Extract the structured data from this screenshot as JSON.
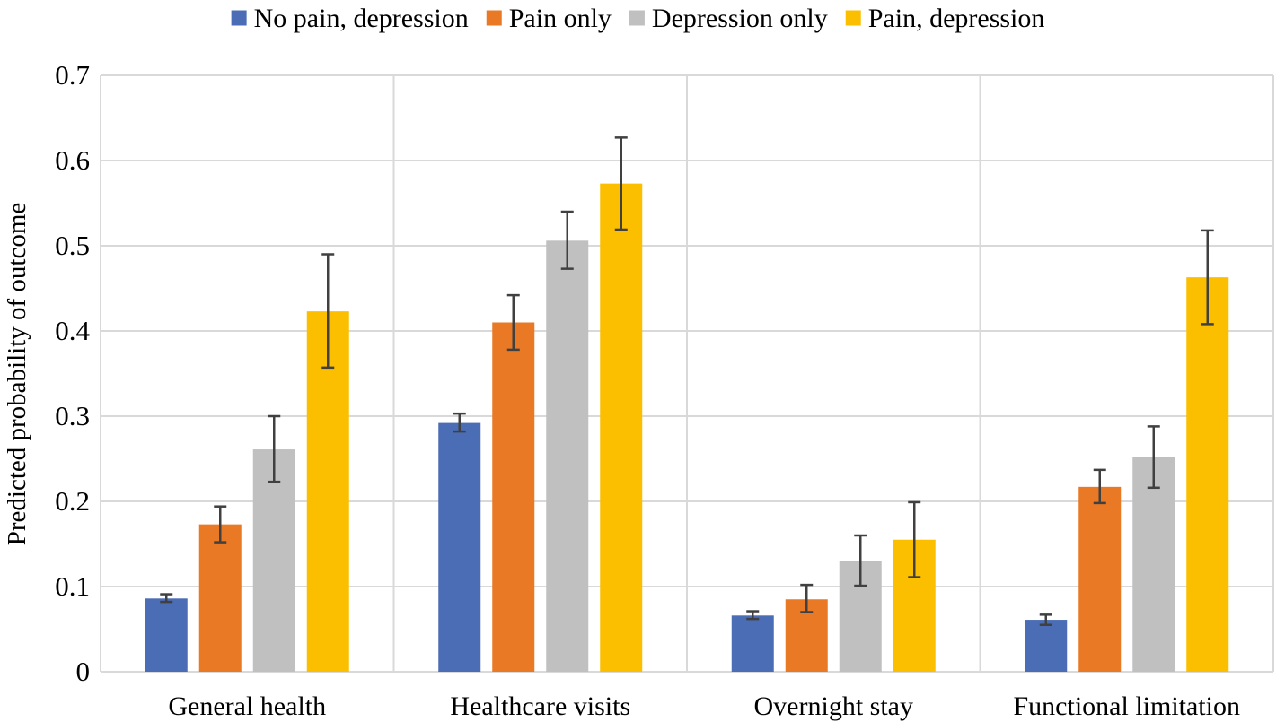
{
  "chart_data": {
    "type": "bar",
    "title": "",
    "xlabel": "",
    "ylabel": "Predicted probability of outcome",
    "ylim": [
      0,
      0.7
    ],
    "yticks": [
      "0",
      "0.1",
      "0.2",
      "0.3",
      "0.4",
      "0.5",
      "0.6",
      "0.7"
    ],
    "grid": true,
    "legend_position": "top",
    "categories": [
      "General health",
      "Healthcare visits",
      "Overnight stay",
      "Functional limitation"
    ],
    "series": [
      {
        "name": "No pain, depression",
        "color": "#4a6db5",
        "values": [
          0.086,
          0.292,
          0.066,
          0.061
        ],
        "error_low": [
          0.082,
          0.282,
          0.062,
          0.055
        ],
        "error_high": [
          0.091,
          0.303,
          0.071,
          0.067
        ]
      },
      {
        "name": "Pain only",
        "color": "#e97925",
        "values": [
          0.173,
          0.41,
          0.085,
          0.217
        ],
        "error_low": [
          0.152,
          0.378,
          0.07,
          0.198
        ],
        "error_high": [
          0.194,
          0.442,
          0.102,
          0.237
        ]
      },
      {
        "name": "Depression only",
        "color": "#c0c0c0",
        "values": [
          0.261,
          0.506,
          0.13,
          0.252
        ],
        "error_low": [
          0.223,
          0.473,
          0.101,
          0.216
        ],
        "error_high": [
          0.3,
          0.54,
          0.16,
          0.288
        ]
      },
      {
        "name": "Pain, depression",
        "color": "#fcbf00",
        "values": [
          0.423,
          0.573,
          0.155,
          0.463
        ],
        "error_low": [
          0.357,
          0.519,
          0.111,
          0.408
        ],
        "error_high": [
          0.49,
          0.627,
          0.199,
          0.518
        ]
      }
    ]
  }
}
